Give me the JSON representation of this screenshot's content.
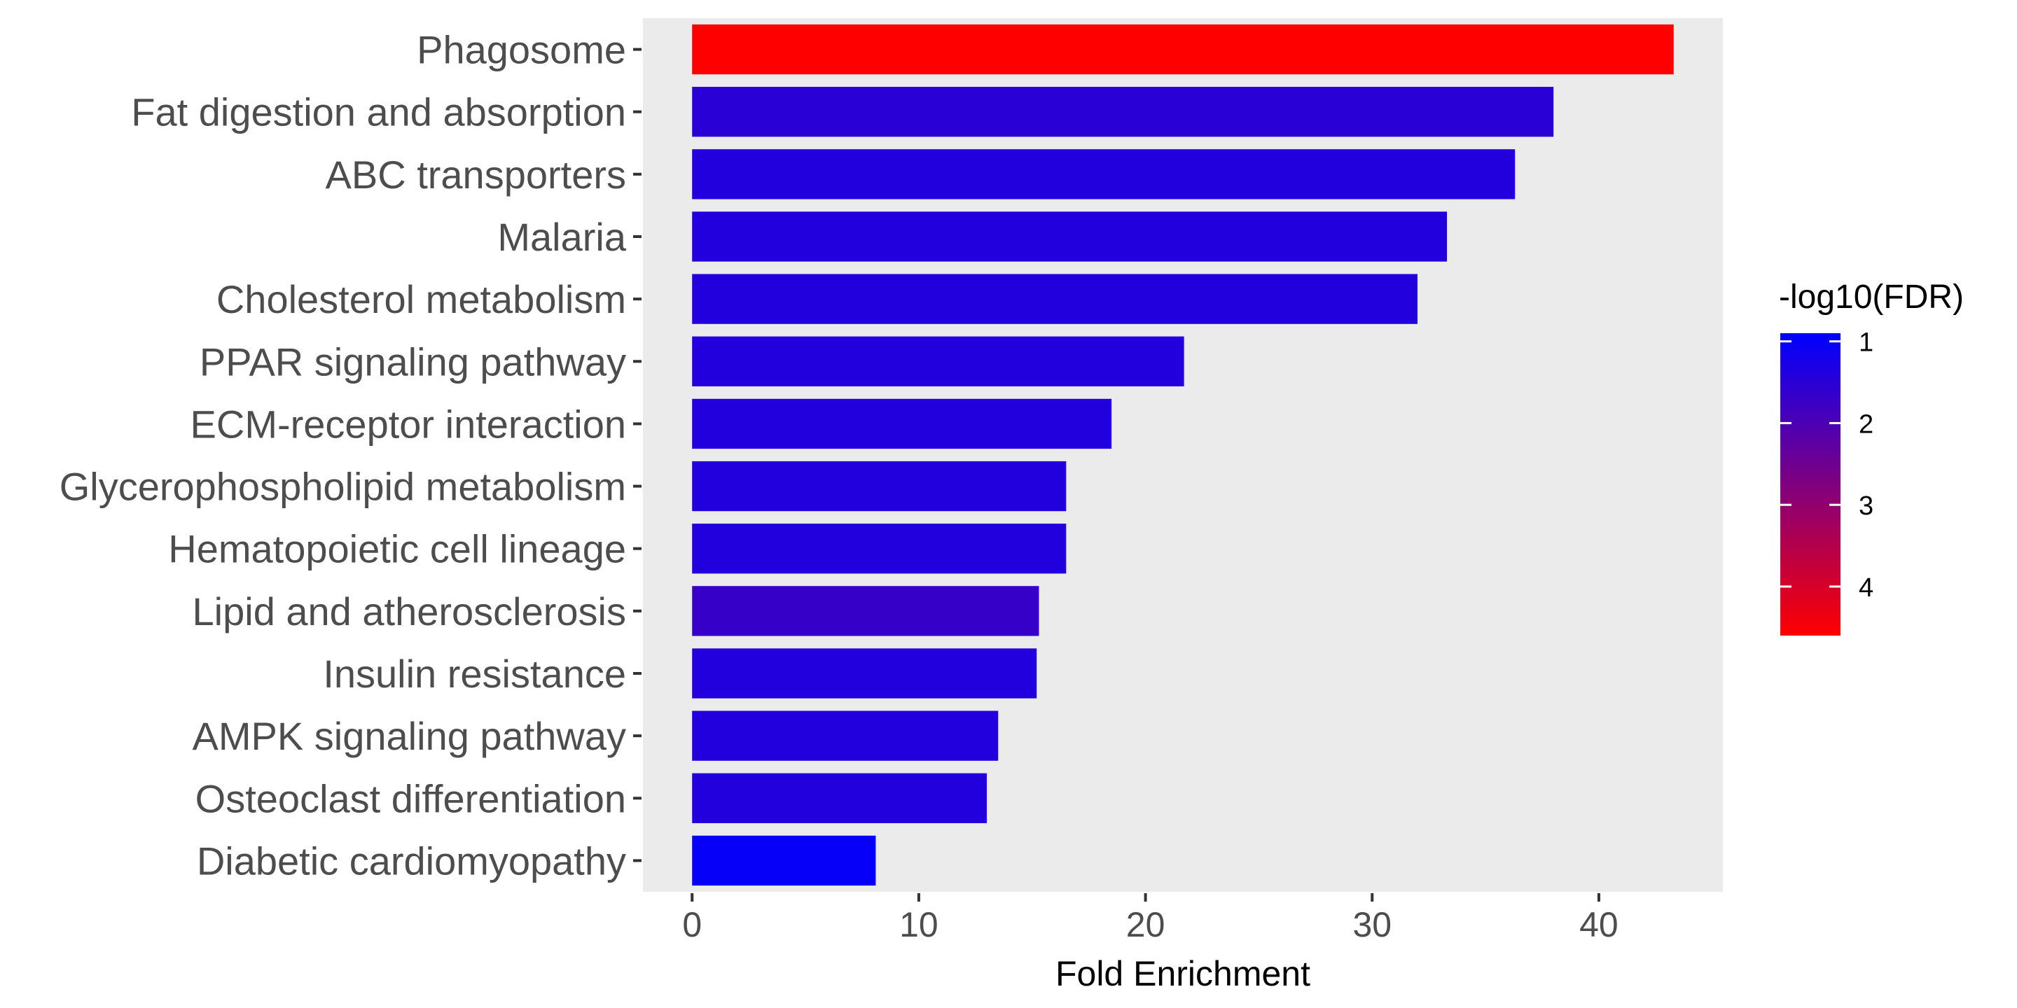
{
  "chart_data": {
    "type": "bar",
    "orientation": "horizontal",
    "categories": [
      "Phagosome",
      "Fat digestion and absorption",
      "ABC transporters",
      "Malaria",
      "Cholesterol metabolism",
      "PPAR signaling pathway",
      "ECM-receptor interaction",
      "Glycerophospholipid metabolism",
      "Hematopoietic cell lineage",
      "Lipid and atherosclerosis",
      "Insulin resistance",
      "AMPK signaling pathway",
      "Osteoclast differentiation",
      "Diabetic cardiomyopathy"
    ],
    "values": [
      43.3,
      38.0,
      36.3,
      33.3,
      32.0,
      21.7,
      18.5,
      16.5,
      16.5,
      15.3,
      15.2,
      13.5,
      13.0,
      8.1
    ],
    "color_values": [
      4.6,
      1.5,
      1.4,
      1.4,
      1.4,
      1.4,
      1.4,
      1.4,
      1.4,
      1.7,
      1.4,
      1.4,
      1.4,
      1.0
    ],
    "xlabel": "Fold Enrichment",
    "ylabel": "",
    "xlim": [
      -2.17,
      45.47
    ],
    "xticks": [
      0,
      10,
      20,
      30,
      40
    ],
    "grid": false,
    "panel_background": "#ebebeb",
    "legend": {
      "title": "-log10(FDR)",
      "position": "right",
      "ticks": [
        1,
        2,
        3,
        4
      ],
      "range": [
        0.9,
        4.6
      ],
      "low_color": "#0000ff",
      "high_color": "#ff0000"
    }
  }
}
